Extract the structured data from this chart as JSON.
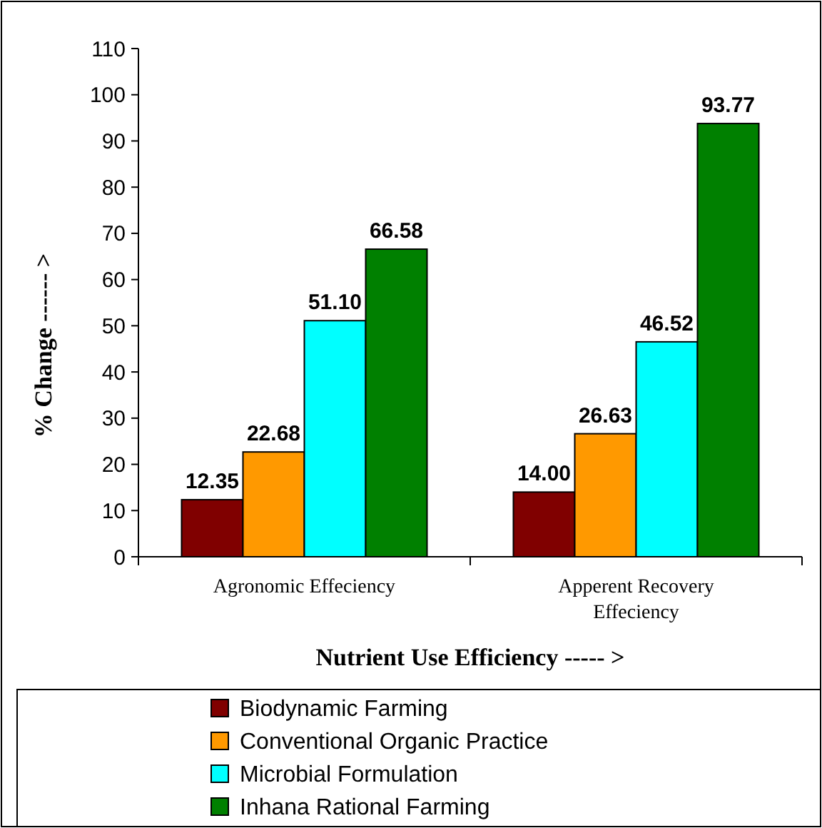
{
  "chart_data": {
    "type": "bar",
    "xlabel": "Nutrient Use Efficiency ----- >",
    "ylabel": "% Change ------ >",
    "categories": [
      "Agronomic Effeciency",
      "Apperent Recovery Effeciency"
    ],
    "series": [
      {
        "name": "Biodynamic Farming",
        "color": "#800000",
        "values": [
          12.35,
          14.0
        ]
      },
      {
        "name": "Conventional Organic Practice",
        "color": "#ff9900",
        "values": [
          22.68,
          26.63
        ]
      },
      {
        "name": "Microbial Formulation",
        "color": "#00ffff",
        "values": [
          51.1,
          46.52
        ]
      },
      {
        "name": "Inhana Rational Farming",
        "color": "#008000",
        "values": [
          66.58,
          93.77
        ]
      }
    ],
    "value_labels": [
      [
        "12.35",
        "14.00"
      ],
      [
        "22.68",
        "26.63"
      ],
      [
        "51.10",
        "46.52"
      ],
      [
        "66.58",
        "93.77"
      ]
    ],
    "ylim": [
      0,
      110
    ],
    "yticks": [
      0,
      10,
      20,
      30,
      40,
      50,
      60,
      70,
      80,
      90,
      100,
      110
    ],
    "grid": false,
    "legend": "bottom"
  }
}
